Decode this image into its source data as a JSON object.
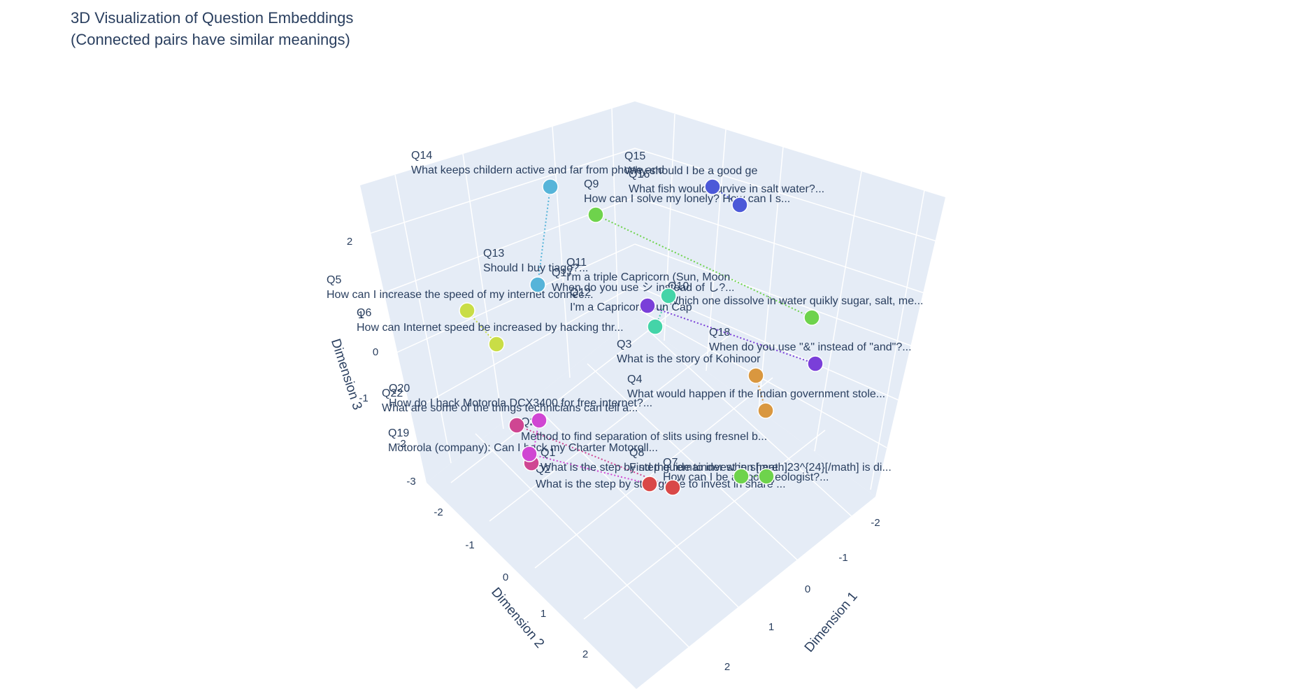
{
  "chart_data": {
    "type": "scatter3d",
    "title_line1": "3D Visualization of Question Embeddings",
    "title_line2": "(Connected pairs have similar meanings)",
    "axes": {
      "x": {
        "label": "Dimension 1",
        "ticks": [
          "-2",
          "-1",
          "0",
          "1",
          "2"
        ]
      },
      "y": {
        "label": "Dimension 2",
        "ticks": [
          "-2",
          "-1",
          "0",
          "1",
          "2"
        ]
      },
      "z": {
        "label": "Dimension 3",
        "ticks": [
          "-3",
          "-2",
          "-1",
          "0",
          "1",
          "2"
        ]
      }
    },
    "points": [
      {
        "id": "Q14",
        "text": "What keeps childern active and far from phone and",
        "color": "#56b4d9"
      },
      {
        "id": "Q13",
        "text": "Should I buy tiago?...",
        "color": "#56b4d9"
      },
      {
        "id": "Q15",
        "text": "Why should I be a good ge",
        "color": "#4c59d8"
      },
      {
        "id": "Q16",
        "text": "What fish would survive in salt water?...",
        "color": "#4c59d8"
      },
      {
        "id": "Q9",
        "text": "How can I solve my lonely? How can I s...",
        "color": "#6ed34c"
      },
      {
        "id": "Q10",
        "text": "Which one dissolve in water quikly sugar, salt, me...",
        "color": "#6ed34c"
      },
      {
        "id": "Q5",
        "text": "How can I increase the speed of my internet connec...",
        "color": "#c9dd46"
      },
      {
        "id": "Q6",
        "text": "How can Internet speed be increased by hacking thr...",
        "color": "#c9dd46"
      },
      {
        "id": "Q17",
        "text": "When do you use シ instead of し?...",
        "color": "#7a3fd9"
      },
      {
        "id": "Q18",
        "text": "When do you use \"&\" instead of \"and\"?...",
        "color": "#7a3fd9"
      },
      {
        "id": "Q11",
        "text": "I'm a triple Capricorn (Sun, Moon",
        "color": "#44d4a8"
      },
      {
        "id": "Q12",
        "text": "I'm a Capricorn Sun Cap",
        "color": "#44d4a8"
      },
      {
        "id": "Q3",
        "text": "What is the story of Kohinoor",
        "color": "#d9973f"
      },
      {
        "id": "Q4",
        "text": "What would happen if the Indian government stole...",
        "color": "#d9973f"
      },
      {
        "id": "Q22",
        "text": "What are some of the things technicians can tell a...",
        "color": "#cf4692"
      },
      {
        "id": "Q20",
        "text": "How do I hack Motorola DCX3400 for free internet?...",
        "color": "#d046d3"
      },
      {
        "id": "Q19",
        "text": "Motorola (company): Can I hack my Charter Motoroll...",
        "color": "#cf4692"
      },
      {
        "id": "Q21",
        "text": "Method to find separation of slits using fresnel b...",
        "color": "#d046d3"
      },
      {
        "id": "Q1",
        "text": "What is the step by step guide to invest in share ...",
        "color": "#d94848"
      },
      {
        "id": "Q2",
        "text": "What is the step by step guide to invest in share ...",
        "color": "#d94848"
      },
      {
        "id": "Q7",
        "text": "How can I be a good geologist?...",
        "color": "#6ed34c"
      },
      {
        "id": "Q8",
        "text": "Find the remainder when [math]23^{24}[/math] is di...",
        "color": "#6ed34c"
      }
    ]
  }
}
